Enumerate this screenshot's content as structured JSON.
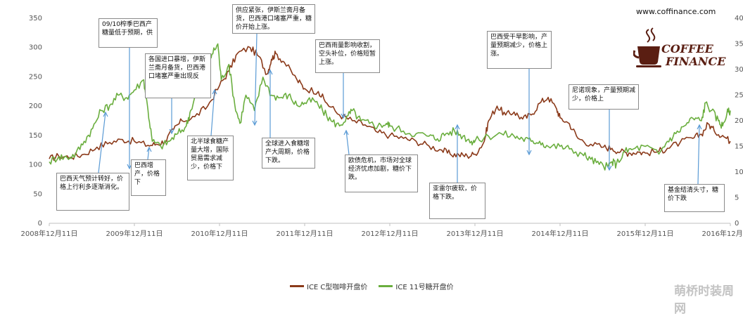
{
  "website": "www.coffinance.com",
  "logo": {
    "line1": "COFFEE",
    "line2": "FINANCE",
    "icon": "coffee-cup-icon"
  },
  "watermark": "萌桥时装周网",
  "legend_items": [
    {
      "label": "ICE C型咖啡开盘价",
      "color": "#8B3A1A"
    },
    {
      "label": "ICE 11号糖开盘价",
      "color": "#6AAE3E"
    }
  ],
  "annotations": [
    {
      "text": "09/10榨季巴西产糖量低于预期，供"
    },
    {
      "text": "巴西天气预计转好，价格上行利多逐渐消化。"
    },
    {
      "text": "各国进口暴增，伊斯兰斋月备货，巴西港口堵塞严重出现反"
    },
    {
      "text": "巴西增产，价格下"
    },
    {
      "text": "北半球食糖产量大增，国际贸易需求减少，价格下"
    },
    {
      "text": "供应紧张，伊斯兰斋月备货，巴西港口堵塞严重，糖价开始上涨。"
    },
    {
      "text": "全球进入食糖增产大周期，价格下跌。"
    },
    {
      "text": "巴西雨量影响收割，空头补位，价格短暂上涨。"
    },
    {
      "text": "欧债危机，市场对全球经济忧虑加剧，糖价下跌。"
    },
    {
      "text": "亚雷尔疲软，价格下跌。"
    },
    {
      "text": "巴西受干旱影响，产量预期减少，价格上涨。"
    },
    {
      "text": "尼诺现象，产量预期减少，价格上"
    },
    {
      "text": "基金结清头寸，糖价下跌"
    }
  ],
  "chart_data": {
    "type": "line",
    "title": "",
    "x_tick_labels": [
      "2008年12月11日",
      "2009年12月11日",
      "2010年12月11日",
      "2011年12月11日",
      "2012年12月11日",
      "2013年12月11日",
      "2014年12月11日",
      "2015年12月11日",
      "2016年12月11日"
    ],
    "x_range": [
      2008.94,
      2016.94
    ],
    "y_left": {
      "range": [
        0,
        350
      ],
      "ticks": [
        "0",
        "50",
        "100",
        "150",
        "200",
        "250",
        "300",
        "350"
      ]
    },
    "y_right": {
      "range": [
        0,
        40
      ],
      "ticks": [
        "0",
        "5",
        "10",
        "15",
        "20",
        "25",
        "30",
        "35",
        "40"
      ]
    },
    "grid": false,
    "legend_position": "bottom",
    "series": [
      {
        "name": "ICE C型咖啡开盘价",
        "axis": "left",
        "color": "#8B3A1A",
        "points": [
          [
            2008.94,
            110
          ],
          [
            2009.05,
            115
          ],
          [
            2009.2,
            113
          ],
          [
            2009.35,
            118
          ],
          [
            2009.5,
            130
          ],
          [
            2009.65,
            138
          ],
          [
            2009.8,
            143
          ],
          [
            2009.94,
            140
          ],
          [
            2010.1,
            133
          ],
          [
            2010.2,
            135
          ],
          [
            2010.3,
            140
          ],
          [
            2010.4,
            160
          ],
          [
            2010.5,
            175
          ],
          [
            2010.65,
            182
          ],
          [
            2010.8,
            200
          ],
          [
            2010.94,
            235
          ],
          [
            2011.05,
            260
          ],
          [
            2011.15,
            290
          ],
          [
            2011.3,
            300
          ],
          [
            2011.4,
            285
          ],
          [
            2011.5,
            255
          ],
          [
            2011.55,
            280
          ],
          [
            2011.6,
            290
          ],
          [
            2011.7,
            275
          ],
          [
            2011.85,
            245
          ],
          [
            2011.94,
            230
          ],
          [
            2012.1,
            225
          ],
          [
            2012.2,
            205
          ],
          [
            2012.35,
            185
          ],
          [
            2012.5,
            175
          ],
          [
            2012.65,
            168
          ],
          [
            2012.8,
            155
          ],
          [
            2012.94,
            150
          ],
          [
            2013.1,
            145
          ],
          [
            2013.25,
            140
          ],
          [
            2013.4,
            132
          ],
          [
            2013.55,
            125
          ],
          [
            2013.65,
            118
          ],
          [
            2013.75,
            117
          ],
          [
            2013.85,
            115
          ],
          [
            2013.94,
            118
          ],
          [
            2014.05,
            140
          ],
          [
            2014.1,
            175
          ],
          [
            2014.2,
            200
          ],
          [
            2014.3,
            185
          ],
          [
            2014.4,
            190
          ],
          [
            2014.5,
            178
          ],
          [
            2014.6,
            185
          ],
          [
            2014.7,
            205
          ],
          [
            2014.8,
            215
          ],
          [
            2014.9,
            195
          ],
          [
            2014.94,
            180
          ],
          [
            2015.05,
            170
          ],
          [
            2015.15,
            145
          ],
          [
            2015.3,
            135
          ],
          [
            2015.45,
            130
          ],
          [
            2015.55,
            128
          ],
          [
            2015.65,
            122
          ],
          [
            2015.75,
            120
          ],
          [
            2015.85,
            122
          ],
          [
            2015.94,
            120
          ],
          [
            2016.1,
            123
          ],
          [
            2016.2,
            128
          ],
          [
            2016.35,
            138
          ],
          [
            2016.5,
            145
          ],
          [
            2016.6,
            152
          ],
          [
            2016.68,
            170
          ],
          [
            2016.75,
            158
          ],
          [
            2016.85,
            150
          ],
          [
            2016.94,
            140
          ]
        ]
      },
      {
        "name": "ICE 11号糖开盘价",
        "axis": "right",
        "color": "#6AAE3E",
        "points": [
          [
            2008.94,
            12
          ],
          [
            2009.05,
            13
          ],
          [
            2009.15,
            12.8
          ],
          [
            2009.25,
            13.5
          ],
          [
            2009.35,
            16
          ],
          [
            2009.45,
            18.5
          ],
          [
            2009.55,
            22
          ],
          [
            2009.65,
            23
          ],
          [
            2009.75,
            25
          ],
          [
            2009.85,
            24.5
          ],
          [
            2009.94,
            26
          ],
          [
            2010.05,
            28
          ],
          [
            2010.1,
            22
          ],
          [
            2010.15,
            16
          ],
          [
            2010.25,
            15
          ],
          [
            2010.35,
            16
          ],
          [
            2010.45,
            17.5
          ],
          [
            2010.55,
            19
          ],
          [
            2010.6,
            22
          ],
          [
            2010.7,
            27
          ],
          [
            2010.8,
            29
          ],
          [
            2010.85,
            33
          ],
          [
            2010.92,
            35
          ],
          [
            2010.96,
            28
          ],
          [
            2011.05,
            31
          ],
          [
            2011.12,
            23
          ],
          [
            2011.18,
            19.5
          ],
          [
            2011.25,
            25
          ],
          [
            2011.35,
            22
          ],
          [
            2011.45,
            28.5
          ],
          [
            2011.55,
            25
          ],
          [
            2011.65,
            24.5
          ],
          [
            2011.75,
            25
          ],
          [
            2011.85,
            23
          ],
          [
            2011.94,
            23.5
          ],
          [
            2012.05,
            24
          ],
          [
            2012.15,
            22
          ],
          [
            2012.25,
            20
          ],
          [
            2012.35,
            19
          ],
          [
            2012.45,
            21
          ],
          [
            2012.5,
            22
          ],
          [
            2012.6,
            20
          ],
          [
            2012.7,
            19.5
          ],
          [
            2012.8,
            19
          ],
          [
            2012.9,
            19.5
          ],
          [
            2012.94,
            19
          ],
          [
            2013.1,
            18
          ],
          [
            2013.25,
            17.5
          ],
          [
            2013.4,
            17
          ],
          [
            2013.5,
            16.5
          ],
          [
            2013.6,
            17.5
          ],
          [
            2013.7,
            18
          ],
          [
            2013.8,
            17
          ],
          [
            2013.9,
            16
          ],
          [
            2013.94,
            16
          ],
          [
            2014.1,
            17
          ],
          [
            2014.25,
            17.5
          ],
          [
            2014.4,
            17
          ],
          [
            2014.5,
            16.5
          ],
          [
            2014.6,
            16
          ],
          [
            2014.7,
            16
          ],
          [
            2014.8,
            15
          ],
          [
            2014.94,
            15
          ],
          [
            2015.05,
            14.5
          ],
          [
            2015.2,
            13.5
          ],
          [
            2015.3,
            12.5
          ],
          [
            2015.4,
            11.5
          ],
          [
            2015.5,
            11
          ],
          [
            2015.55,
            12
          ],
          [
            2015.6,
            11.5
          ],
          [
            2015.7,
            14
          ],
          [
            2015.8,
            14.5
          ],
          [
            2015.94,
            15
          ],
          [
            2016.1,
            13.5
          ],
          [
            2016.2,
            16
          ],
          [
            2016.3,
            17.5
          ],
          [
            2016.4,
            19
          ],
          [
            2016.5,
            20.5
          ],
          [
            2016.6,
            20
          ],
          [
            2016.65,
            23.5
          ],
          [
            2016.72,
            22
          ],
          [
            2016.8,
            20
          ],
          [
            2016.85,
            19
          ],
          [
            2016.9,
            21.5
          ],
          [
            2016.94,
            22
          ]
        ]
      }
    ]
  }
}
